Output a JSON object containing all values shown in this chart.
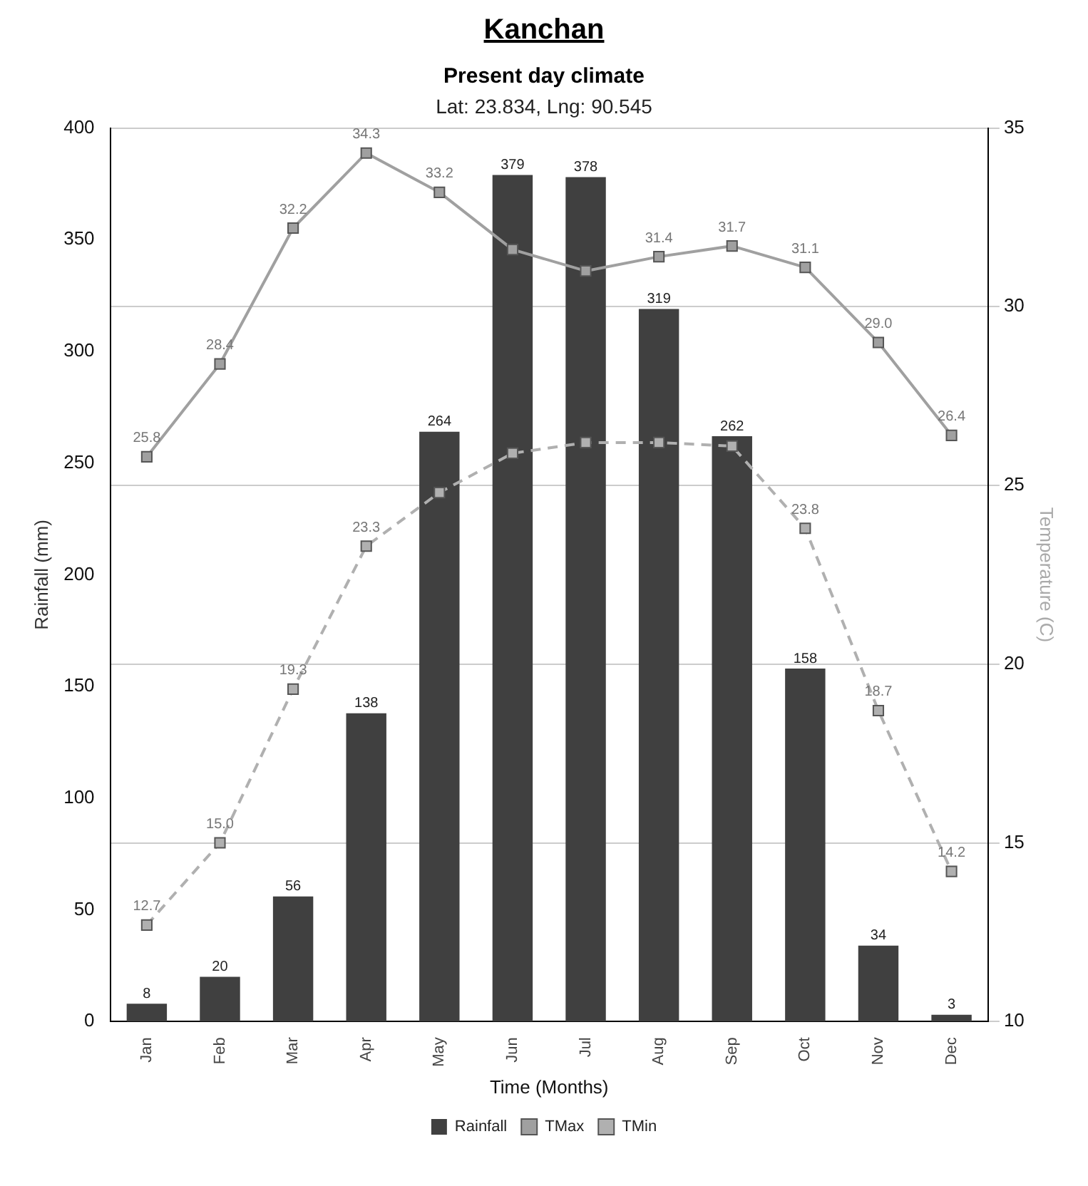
{
  "chart_data": {
    "type": "bar",
    "title": "Present day climate",
    "subtitle": "Lat: 23.834, Lng: 90.545",
    "annotations": [
      "Kanchan"
    ],
    "xlabel": "Time (Months)",
    "ylabel": "Rainfall (mm)",
    "y2label": "Temperature (C)",
    "categories": [
      "Jan",
      "Feb",
      "Mar",
      "Apr",
      "May",
      "Jun",
      "Jul",
      "Aug",
      "Sep",
      "Oct",
      "Nov",
      "Dec"
    ],
    "series": [
      {
        "name": "Rainfall",
        "color": "#404040",
        "values": [
          8,
          20,
          56,
          138,
          264,
          379,
          378,
          319,
          262,
          158,
          34,
          3
        ],
        "value_labels": [
          "8",
          "20",
          "56",
          "138",
          "264",
          "379",
          "378",
          "319",
          "262",
          "158",
          "34",
          "3"
        ]
      },
      {
        "name": "TMax",
        "type": "line",
        "axis": "y2",
        "color": "#a0a0a0",
        "line_style": "solid",
        "values": [
          25.8,
          28.4,
          32.2,
          34.3,
          33.2,
          31.6,
          31.0,
          31.4,
          31.7,
          31.1,
          29.0,
          26.4
        ],
        "value_labels": [
          "25.8",
          "28.4",
          "32.2",
          "34.3",
          "33.2",
          null,
          null,
          "31.4",
          "31.7",
          "31.1",
          "29.0",
          "26.4"
        ]
      },
      {
        "name": "TMin",
        "type": "line",
        "axis": "y2",
        "color": "#b0b0b0",
        "line_style": "dashed",
        "values": [
          12.7,
          15.0,
          19.3,
          23.3,
          24.8,
          25.9,
          26.2,
          26.2,
          26.1,
          23.8,
          18.7,
          14.2
        ],
        "value_labels": [
          "12.7",
          "15.0",
          "19.3",
          "23.3",
          null,
          null,
          null,
          null,
          null,
          "23.8",
          "18.7",
          "14.2"
        ]
      }
    ],
    "ylim": [
      0,
      400
    ],
    "yticks": [
      0,
      50,
      100,
      150,
      200,
      250,
      300,
      350,
      400
    ],
    "y2lim": [
      10,
      35
    ],
    "y2ticks": [
      10,
      15,
      20,
      25,
      30,
      35
    ],
    "grid": "y",
    "legend": "bottom",
    "marker": "square"
  }
}
